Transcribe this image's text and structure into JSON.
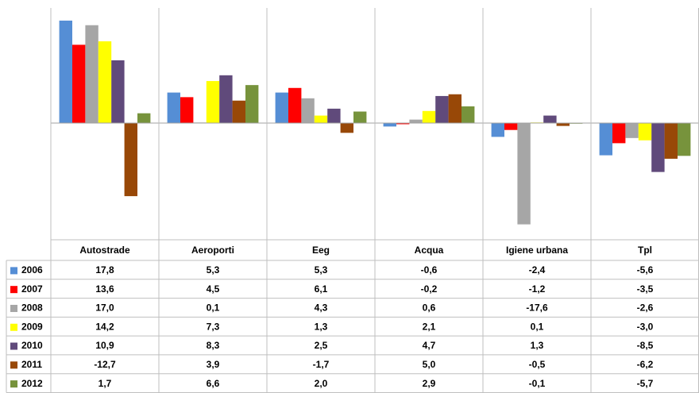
{
  "chart_data": {
    "type": "bar",
    "categories": [
      "Autostrade",
      "Aeroporti",
      "Eeg",
      "Acqua",
      "Igiene urbana",
      "Tpl"
    ],
    "series": [
      {
        "name": "2006",
        "color": "#558ed5",
        "values": [
          17.8,
          5.3,
          5.3,
          -0.6,
          -2.4,
          -5.6
        ],
        "value_labels": [
          "17,8",
          "5,3",
          "5,3",
          "-0,6",
          "-2,4",
          "-5,6"
        ]
      },
      {
        "name": "2007",
        "color": "#ff0000",
        "values": [
          13.6,
          4.5,
          6.1,
          -0.2,
          -1.2,
          -3.5
        ],
        "value_labels": [
          "13,6",
          "4,5",
          "6,1",
          "-0,2",
          "-1,2",
          "-3,5"
        ]
      },
      {
        "name": "2008",
        "color": "#a6a6a6",
        "values": [
          17.0,
          0.1,
          4.3,
          0.6,
          -17.6,
          -2.6
        ],
        "value_labels": [
          "17,0",
          "0,1",
          "4,3",
          "0,6",
          "-17,6",
          "-2,6"
        ]
      },
      {
        "name": "2009",
        "color": "#ffff00",
        "values": [
          14.2,
          7.3,
          1.3,
          2.1,
          0.1,
          -3.0
        ],
        "value_labels": [
          "14,2",
          "7,3",
          "1,3",
          "2,1",
          "0,1",
          "-3,0"
        ]
      },
      {
        "name": "2010",
        "color": "#604a7b",
        "values": [
          10.9,
          8.3,
          2.5,
          4.7,
          1.3,
          -8.5
        ],
        "value_labels": [
          "10,9",
          "8,3",
          "2,5",
          "4,7",
          "1,3",
          "-8,5"
        ]
      },
      {
        "name": "2011",
        "color": "#984807",
        "values": [
          -12.7,
          3.9,
          -1.7,
          5.0,
          -0.5,
          -6.2
        ],
        "value_labels": [
          "-12,7",
          "3,9",
          "-1,7",
          "5,0",
          "-0,5",
          "-6,2"
        ]
      },
      {
        "name": "2012",
        "color": "#77933c",
        "values": [
          1.7,
          6.6,
          2.0,
          2.9,
          -0.1,
          -5.7
        ],
        "value_labels": [
          "1,7",
          "6,6",
          "2,0",
          "2,9",
          "-0,1",
          "-5,7"
        ]
      }
    ],
    "ylim": [
      -20,
      20
    ]
  }
}
